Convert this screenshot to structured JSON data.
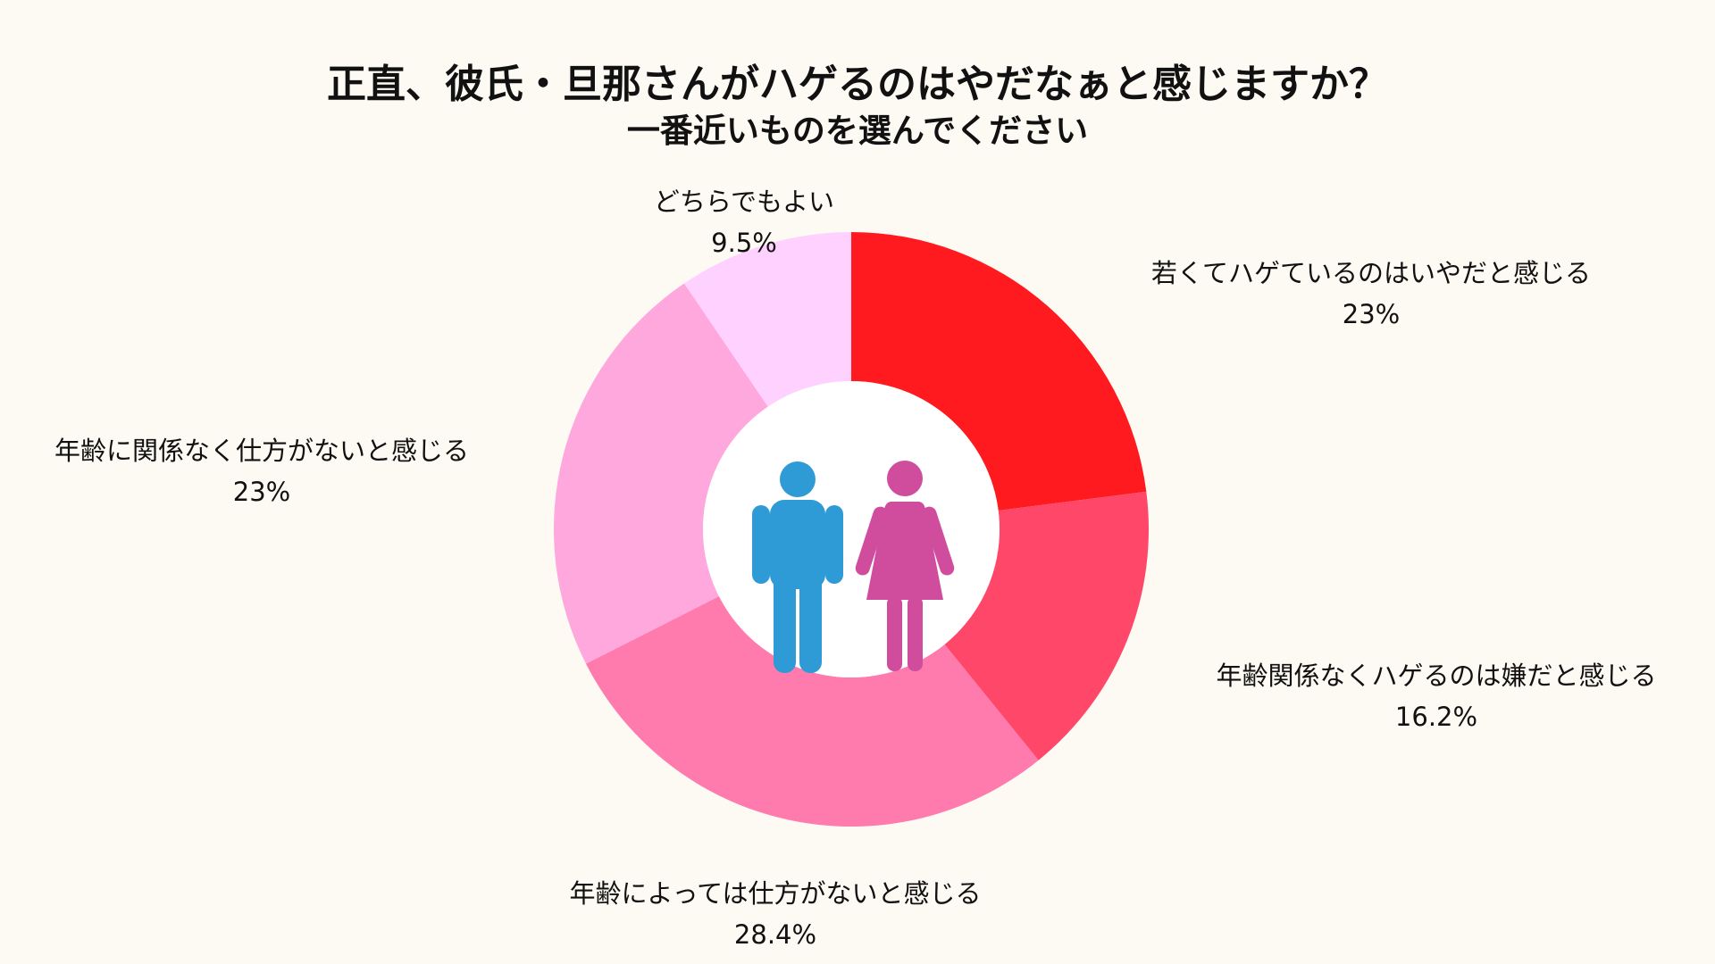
{
  "header": {
    "title": "正直、彼氏・旦那さんがハゲるのはやだなぁと感じますか？",
    "subtitle": "一番近いものを選んでください"
  },
  "chart_data": {
    "type": "pie",
    "title": "正直、彼氏・旦那さんがハゲるのはやだなぁと感じますか？",
    "subtitle": "一番近いものを選んでください",
    "donut": true,
    "start_angle_deg": 0,
    "direction": "clockwise",
    "slices": [
      {
        "label": "若くてハゲているのはいやだと感じる",
        "value": 23,
        "value_label": "23%",
        "color": "#ff1a1f"
      },
      {
        "label": "年齢関係なくハゲるのは嫌だと感じる",
        "value": 16.2,
        "value_label": "16.2%",
        "color": "#ff4769"
      },
      {
        "label": "年齢によっては仕方がないと感じる",
        "value": 28.4,
        "value_label": "28.4%",
        "color": "#ff7aad"
      },
      {
        "label": "年齢に関係なく仕方がないと感じる",
        "value": 23,
        "value_label": "23%",
        "color": "#ffa8de"
      },
      {
        "label": "どちらでもよい",
        "value": 9.5,
        "value_label": "9.5%",
        "color": "#ffd1ff"
      }
    ],
    "center_icons": [
      {
        "name": "man-icon",
        "color": "#2e9bd6"
      },
      {
        "name": "woman-icon",
        "color": "#d04d9e"
      }
    ]
  }
}
